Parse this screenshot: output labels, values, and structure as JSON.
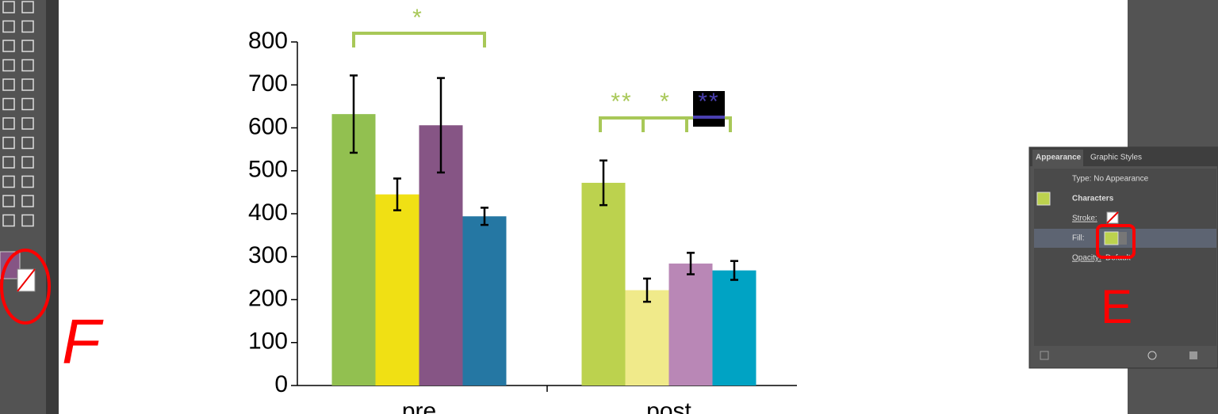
{
  "chart_data": {
    "type": "bar",
    "categories": [
      "pre",
      "post"
    ],
    "series": [
      {
        "colors": [
          "#92c050",
          "#bcd24e"
        ],
        "values": [
          632,
          472
        ],
        "errors": [
          90,
          52
        ]
      },
      {
        "colors": [
          "#f0e014",
          "#f0ea8a"
        ],
        "values": [
          445,
          222
        ],
        "errors": [
          37,
          27
        ]
      },
      {
        "colors": [
          "#865585",
          "#b987b6"
        ],
        "values": [
          606,
          284
        ],
        "errors": [
          110,
          25
        ]
      },
      {
        "colors": [
          "#2577a3",
          "#00a3c4"
        ],
        "values": [
          394,
          268
        ],
        "errors": [
          20,
          22
        ]
      }
    ],
    "ylim": [
      0,
      800
    ],
    "yticks": [
      0,
      100,
      200,
      300,
      400,
      500,
      600,
      700,
      800
    ],
    "significance": [
      "*",
      "**",
      "*",
      "**"
    ]
  },
  "panel": {
    "tabs": [
      "Appearance",
      "Graphic Styles"
    ],
    "type_label": "Type: No Appearance",
    "object": "Characters",
    "stroke_label": "Stroke:",
    "fill_label": "Fill:",
    "opacity_label": "Opacity:",
    "opacity_value": "Default"
  },
  "markup_notes": [
    "F",
    "E"
  ]
}
